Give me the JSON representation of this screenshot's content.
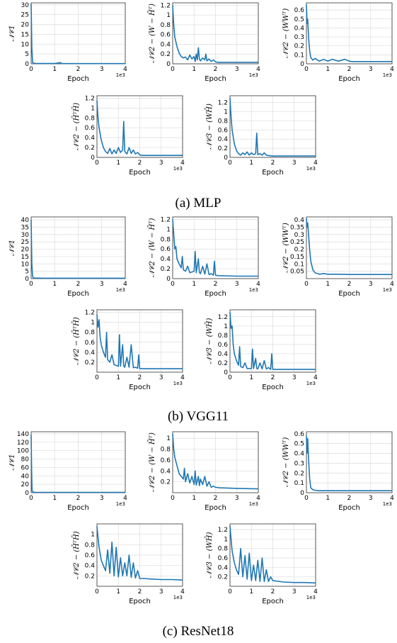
{
  "figure": {
    "captions": [
      "(a) MLP",
      "(b) VGG11",
      "(c) ResNet18"
    ],
    "line_color": "#1f77b4"
  },
  "chart_data": [
    {
      "group": 0,
      "type": "line",
      "xlabel": "Epoch",
      "ylabel": "𝒩𝒞1",
      "xlim": [
        0,
        4000
      ],
      "ylim": [
        0,
        31
      ],
      "xticks": [
        0,
        1,
        2,
        3,
        4
      ],
      "yticks": [
        0,
        5,
        10,
        15,
        20,
        25,
        30
      ],
      "x_offset_label": "1e3",
      "series": [
        {
          "x": [
            0,
            30,
            60,
            100,
            200,
            500,
            1000,
            1250,
            1300,
            2000,
            3000,
            4000
          ],
          "y": [
            30.5,
            8,
            0.8,
            0.3,
            0.2,
            0.15,
            0.15,
            0.6,
            0.15,
            0.12,
            0.12,
            0.12
          ]
        }
      ]
    },
    {
      "group": 0,
      "type": "line",
      "xlabel": "Epoch",
      "ylabel": "𝒩𝒞2 − (W − H̄ᵀ)",
      "xlim": [
        0,
        4000
      ],
      "ylim": [
        0,
        1.25
      ],
      "xticks": [
        0,
        1,
        2,
        3,
        4
      ],
      "yticks": [
        0.0,
        0.2,
        0.4,
        0.6,
        0.8,
        1.0,
        1.2
      ],
      "x_offset_label": "1e3",
      "series": [
        {
          "x": [
            0,
            50,
            100,
            200,
            300,
            400,
            500,
            600,
            700,
            800,
            900,
            1000,
            1050,
            1100,
            1150,
            1200,
            1250,
            1300,
            1400,
            1500,
            1550,
            1600,
            1700,
            1800,
            1900,
            2000,
            2100,
            3000,
            4000
          ],
          "y": [
            1.2,
            0.8,
            0.55,
            0.35,
            0.22,
            0.15,
            0.12,
            0.14,
            0.08,
            0.18,
            0.1,
            0.15,
            0.05,
            0.2,
            0.08,
            0.33,
            0.1,
            0.06,
            0.12,
            0.08,
            0.2,
            0.06,
            0.1,
            0.05,
            0.08,
            0.04,
            0.03,
            0.03,
            0.03
          ]
        }
      ]
    },
    {
      "group": 0,
      "type": "line",
      "xlabel": "Epoch",
      "ylabel": "𝒩𝒞2 − (WWᵀ)",
      "xlim": [
        0,
        4000
      ],
      "ylim": [
        0,
        0.68
      ],
      "xticks": [
        0,
        1,
        2,
        3,
        4
      ],
      "yticks": [
        0.0,
        0.1,
        0.2,
        0.3,
        0.4,
        0.5,
        0.6
      ],
      "x_offset_label": "1e3",
      "series": [
        {
          "x": [
            0,
            30,
            60,
            100,
            150,
            200,
            300,
            400,
            600,
            800,
            1000,
            1200,
            1500,
            1800,
            2000,
            2100,
            3000,
            4000
          ],
          "y": [
            0.66,
            0.45,
            0.5,
            0.3,
            0.15,
            0.07,
            0.04,
            0.06,
            0.03,
            0.05,
            0.03,
            0.05,
            0.03,
            0.05,
            0.03,
            0.025,
            0.025,
            0.025
          ]
        }
      ]
    },
    {
      "group": 0,
      "type": "line",
      "xlabel": "Epoch",
      "ylabel": "𝒩𝒞2 − (H̄ᵀH̄)",
      "xlim": [
        0,
        4000
      ],
      "ylim": [
        0,
        1.25
      ],
      "xticks": [
        0,
        1,
        2,
        3,
        4
      ],
      "yticks": [
        0.0,
        0.2,
        0.4,
        0.6,
        0.8,
        1.0,
        1.2
      ],
      "x_offset_label": "1e3",
      "series": [
        {
          "x": [
            0,
            50,
            100,
            200,
            300,
            400,
            500,
            600,
            700,
            800,
            900,
            1000,
            1100,
            1200,
            1250,
            1300,
            1400,
            1500,
            1600,
            1700,
            1800,
            1900,
            2000,
            2100,
            3000,
            4000
          ],
          "y": [
            1.15,
            0.8,
            0.6,
            0.35,
            0.2,
            0.12,
            0.08,
            0.18,
            0.07,
            0.15,
            0.08,
            0.2,
            0.1,
            0.15,
            0.73,
            0.12,
            0.07,
            0.2,
            0.08,
            0.15,
            0.07,
            0.1,
            0.05,
            0.04,
            0.04,
            0.04
          ]
        }
      ]
    },
    {
      "group": 0,
      "type": "line",
      "xlabel": "Epoch",
      "ylabel": "𝒩𝒞3 − (WH̄)",
      "xlim": [
        0,
        4000
      ],
      "ylim": [
        0,
        1.35
      ],
      "xticks": [
        0,
        1,
        2,
        3,
        4
      ],
      "yticks": [
        0.0,
        0.2,
        0.4,
        0.6,
        0.8,
        1.0,
        1.2
      ],
      "x_offset_label": "1e3",
      "series": [
        {
          "x": [
            0,
            50,
            100,
            200,
            300,
            400,
            500,
            600,
            700,
            800,
            900,
            1000,
            1100,
            1200,
            1250,
            1300,
            1400,
            1500,
            1600,
            1700,
            1800,
            2000,
            3000,
            4000
          ],
          "y": [
            1.3,
            0.9,
            0.6,
            0.3,
            0.15,
            0.08,
            0.05,
            0.1,
            0.06,
            0.12,
            0.05,
            0.1,
            0.06,
            0.08,
            0.53,
            0.06,
            0.08,
            0.05,
            0.1,
            0.05,
            0.04,
            0.03,
            0.03,
            0.03
          ]
        }
      ]
    },
    {
      "group": 1,
      "type": "line",
      "xlabel": "Epoch",
      "ylabel": "𝒩𝒞1",
      "xlim": [
        0,
        4000
      ],
      "ylim": [
        0,
        42
      ],
      "xticks": [
        0,
        1,
        2,
        3,
        4
      ],
      "yticks": [
        0,
        5,
        10,
        15,
        20,
        25,
        30,
        35,
        40
      ],
      "x_offset_label": "1e3",
      "series": [
        {
          "x": [
            0,
            30,
            60,
            100,
            200,
            500,
            1000,
            2000,
            3000,
            4000
          ],
          "y": [
            40,
            10,
            1.5,
            0.5,
            0.4,
            0.3,
            0.3,
            0.3,
            0.3,
            0.3
          ]
        }
      ]
    },
    {
      "group": 1,
      "type": "line",
      "xlabel": "Epoch",
      "ylabel": "𝒩𝒞2 − (W − H̄ᵀ)",
      "xlim": [
        0,
        4000
      ],
      "ylim": [
        0,
        1.25
      ],
      "xticks": [
        0,
        1,
        2,
        3,
        4
      ],
      "yticks": [
        0.0,
        0.2,
        0.4,
        0.6,
        0.8,
        1.0,
        1.2
      ],
      "x_offset_label": "1e3",
      "series": [
        {
          "x": [
            0,
            50,
            100,
            150,
            200,
            300,
            400,
            450,
            500,
            600,
            700,
            800,
            1000,
            1050,
            1100,
            1200,
            1250,
            1300,
            1400,
            1500,
            1600,
            1700,
            1800,
            1900,
            1950,
            2000,
            2100,
            3000,
            4000
          ],
          "y": [
            1.2,
            0.9,
            0.6,
            0.65,
            0.4,
            0.3,
            0.22,
            0.45,
            0.18,
            0.15,
            0.25,
            0.12,
            0.15,
            0.55,
            0.12,
            0.4,
            0.12,
            0.1,
            0.25,
            0.09,
            0.3,
            0.08,
            0.1,
            0.07,
            0.35,
            0.07,
            0.06,
            0.05,
            0.05
          ]
        }
      ]
    },
    {
      "group": 1,
      "type": "line",
      "xlabel": "Epoch",
      "ylabel": "𝒩𝒞2 − (WWᵀ)",
      "xlim": [
        0,
        4000
      ],
      "ylim": [
        0,
        0.42
      ],
      "xticks": [
        0,
        1,
        2,
        3,
        4
      ],
      "yticks": [
        0.05,
        0.1,
        0.15,
        0.2,
        0.25,
        0.3,
        0.35,
        0.4
      ],
      "x_offset_label": "1e3",
      "series": [
        {
          "x": [
            0,
            30,
            60,
            100,
            150,
            200,
            300,
            400,
            500,
            600,
            800,
            1000,
            1500,
            2000,
            3000,
            4000
          ],
          "y": [
            0.41,
            0.35,
            0.38,
            0.3,
            0.2,
            0.12,
            0.06,
            0.04,
            0.035,
            0.03,
            0.035,
            0.03,
            0.03,
            0.028,
            0.028,
            0.028
          ]
        }
      ]
    },
    {
      "group": 1,
      "type": "line",
      "xlabel": "Epoch",
      "ylabel": "𝒩𝒞2 − (H̄ᵀH̄)",
      "xlim": [
        0,
        4000
      ],
      "ylim": [
        0,
        1.25
      ],
      "xticks": [
        0,
        1,
        2,
        3,
        4
      ],
      "yticks": [
        0.2,
        0.4,
        0.6,
        0.8,
        1.0,
        1.2
      ],
      "x_offset_label": "1e3",
      "series": [
        {
          "x": [
            0,
            50,
            100,
            150,
            200,
            300,
            400,
            450,
            500,
            600,
            700,
            800,
            1000,
            1050,
            1100,
            1200,
            1250,
            1300,
            1400,
            1500,
            1600,
            1700,
            1800,
            1900,
            1950,
            2000,
            2100,
            3000,
            4000
          ],
          "y": [
            1.15,
            0.9,
            1.05,
            0.7,
            0.55,
            0.4,
            0.3,
            0.8,
            0.25,
            0.2,
            0.35,
            0.15,
            0.12,
            0.75,
            0.12,
            0.55,
            0.12,
            0.1,
            0.3,
            0.1,
            0.55,
            0.09,
            0.1,
            0.08,
            0.35,
            0.07,
            0.07,
            0.07,
            0.07
          ]
        }
      ]
    },
    {
      "group": 1,
      "type": "line",
      "xlabel": "Epoch",
      "ylabel": "𝒩𝒞3 − (WH̄)",
      "xlim": [
        0,
        4000
      ],
      "ylim": [
        0,
        1.35
      ],
      "xticks": [
        0,
        1,
        2,
        3,
        4
      ],
      "yticks": [
        0.0,
        0.2,
        0.4,
        0.6,
        0.8,
        1.0,
        1.2
      ],
      "x_offset_label": "1e3",
      "series": [
        {
          "x": [
            0,
            50,
            100,
            150,
            200,
            300,
            400,
            450,
            500,
            600,
            700,
            800,
            1000,
            1050,
            1100,
            1200,
            1250,
            1300,
            1400,
            1500,
            1600,
            1700,
            1800,
            1900,
            1950,
            2000,
            2100,
            3000,
            4000
          ],
          "y": [
            1.3,
            0.95,
            1.0,
            0.6,
            0.4,
            0.25,
            0.15,
            0.55,
            0.12,
            0.1,
            0.2,
            0.08,
            0.08,
            0.5,
            0.08,
            0.3,
            0.08,
            0.07,
            0.2,
            0.07,
            0.25,
            0.07,
            0.1,
            0.06,
            0.4,
            0.06,
            0.06,
            0.06,
            0.06
          ]
        }
      ]
    },
    {
      "group": 2,
      "type": "line",
      "xlabel": "Epoch",
      "ylabel": "𝒩𝒞1",
      "xlim": [
        0,
        4000
      ],
      "ylim": [
        0,
        145
      ],
      "xticks": [
        0,
        1,
        2,
        3,
        4
      ],
      "yticks": [
        0,
        20,
        40,
        60,
        80,
        100,
        120,
        140
      ],
      "x_offset_label": "1e3",
      "series": [
        {
          "x": [
            0,
            20,
            40,
            80,
            150,
            500,
            1000,
            2000,
            3000,
            4000
          ],
          "y": [
            138,
            50,
            5,
            1.5,
            1,
            0.8,
            0.8,
            0.8,
            0.8,
            0.8
          ]
        }
      ]
    },
    {
      "group": 2,
      "type": "line",
      "xlabel": "Epoch",
      "ylabel": "𝒩𝒞2 − (W − H̄ᵀ)",
      "xlim": [
        0,
        4000
      ],
      "ylim": [
        0,
        1.12
      ],
      "xticks": [
        0,
        1,
        2,
        3,
        4
      ],
      "yticks": [
        0.2,
        0.4,
        0.6,
        0.8,
        1.0
      ],
      "x_offset_label": "1e3",
      "series": [
        {
          "x": [
            0,
            50,
            100,
            200,
            300,
            400,
            500,
            550,
            600,
            700,
            800,
            900,
            1000,
            1050,
            1100,
            1200,
            1250,
            1300,
            1400,
            1500,
            1600,
            1700,
            1800,
            1900,
            2000,
            2200,
            3000,
            4000
          ],
          "y": [
            1.08,
            0.8,
            0.65,
            0.5,
            0.35,
            0.3,
            0.25,
            0.45,
            0.2,
            0.35,
            0.18,
            0.3,
            0.15,
            0.4,
            0.14,
            0.3,
            0.13,
            0.25,
            0.15,
            0.3,
            0.12,
            0.2,
            0.1,
            0.12,
            0.1,
            0.09,
            0.08,
            0.07
          ]
        }
      ]
    },
    {
      "group": 2,
      "type": "line",
      "xlabel": "Epoch",
      "ylabel": "𝒩𝒞2 − (WWᵀ)",
      "xlim": [
        0,
        4000
      ],
      "ylim": [
        0,
        0.62
      ],
      "xticks": [
        0,
        1,
        2,
        3,
        4
      ],
      "yticks": [
        0.0,
        0.1,
        0.2,
        0.3,
        0.4,
        0.5,
        0.6
      ],
      "x_offset_label": "1e3",
      "series": [
        {
          "x": [
            0,
            30,
            60,
            100,
            150,
            200,
            300,
            400,
            600,
            1000,
            2000,
            3000,
            4000
          ],
          "y": [
            0.58,
            0.4,
            0.55,
            0.35,
            0.15,
            0.05,
            0.03,
            0.025,
            0.02,
            0.02,
            0.02,
            0.02,
            0.02
          ]
        }
      ]
    },
    {
      "group": 2,
      "type": "line",
      "xlabel": "Epoch",
      "ylabel": "𝒩𝒞2 − (H̄ᵀH̄)",
      "xlim": [
        0,
        4000
      ],
      "ylim": [
        0,
        1.2
      ],
      "xticks": [
        0,
        1,
        2,
        3,
        4
      ],
      "yticks": [
        0.2,
        0.4,
        0.6,
        0.8,
        1.0
      ],
      "x_offset_label": "1e3",
      "series": [
        {
          "x": [
            0,
            50,
            100,
            200,
            300,
            400,
            500,
            600,
            700,
            800,
            900,
            1000,
            1100,
            1200,
            1300,
            1400,
            1500,
            1600,
            1700,
            1800,
            1900,
            2000,
            2200,
            2500,
            3000,
            3500,
            4000
          ],
          "y": [
            1.15,
            0.95,
            0.75,
            0.5,
            0.4,
            0.3,
            0.7,
            0.25,
            0.85,
            0.2,
            0.75,
            0.18,
            0.55,
            0.2,
            0.45,
            0.2,
            0.6,
            0.17,
            0.45,
            0.16,
            0.3,
            0.15,
            0.15,
            0.14,
            0.13,
            0.13,
            0.12
          ]
        }
      ]
    },
    {
      "group": 2,
      "type": "line",
      "xlabel": "Epoch",
      "ylabel": "𝒩𝒞3 − (WH̄)",
      "xlim": [
        0,
        4000
      ],
      "ylim": [
        0,
        1.32
      ],
      "xticks": [
        0,
        1,
        2,
        3,
        4
      ],
      "yticks": [
        0.2,
        0.4,
        0.6,
        0.8,
        1.0,
        1.2
      ],
      "x_offset_label": "1e3",
      "series": [
        {
          "x": [
            0,
            50,
            100,
            200,
            300,
            400,
            500,
            600,
            700,
            800,
            900,
            1000,
            1100,
            1200,
            1300,
            1400,
            1500,
            1600,
            1700,
            1800,
            1900,
            2000,
            2500,
            3000,
            3500,
            4000
          ],
          "y": [
            1.28,
            1.0,
            0.75,
            0.5,
            0.35,
            0.25,
            0.8,
            0.2,
            0.65,
            0.15,
            0.7,
            0.12,
            0.45,
            0.12,
            0.55,
            0.1,
            0.6,
            0.1,
            0.35,
            0.1,
            0.2,
            0.12,
            0.09,
            0.08,
            0.08,
            0.07
          ]
        }
      ]
    }
  ]
}
